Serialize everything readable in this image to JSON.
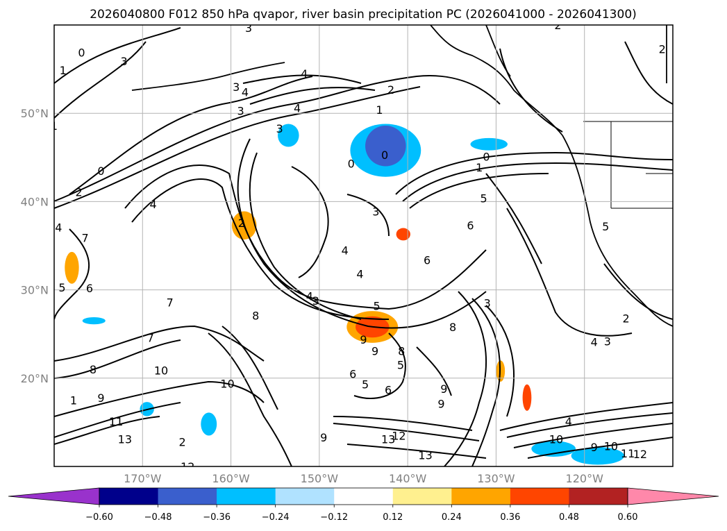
{
  "title": "2026040800 F012 850 hPa qvapor, river basin precipitation PC (2026041000 - 2026041300)",
  "map": {
    "lon_range": [
      -180,
      -110
    ],
    "lat_range": [
      10,
      60
    ],
    "lat_labels": [
      "50°N",
      "40°N",
      "30°N",
      "20°N"
    ],
    "lon_labels": [
      "170°W",
      "160°W",
      "150°W",
      "140°W",
      "130°W",
      "120°W"
    ],
    "contour_labels": [
      {
        "text": "2",
        "lon": -123,
        "lat": 60
      },
      {
        "text": "3",
        "lon": -158,
        "lat": 59.7
      },
      {
        "text": "0",
        "lon": -176.9,
        "lat": 56.9
      },
      {
        "text": "3",
        "lon": -172.1,
        "lat": 55.9
      },
      {
        "text": "2",
        "lon": -111.2,
        "lat": 57.3
      },
      {
        "text": "4",
        "lon": -151.7,
        "lat": 54.5
      },
      {
        "text": "1",
        "lon": -179,
        "lat": 54.9
      },
      {
        "text": "3",
        "lon": -159.4,
        "lat": 53
      },
      {
        "text": "4",
        "lon": -158.4,
        "lat": 52.4
      },
      {
        "text": "2",
        "lon": -141.9,
        "lat": 52.7
      },
      {
        "text": "3",
        "lon": -158.9,
        "lat": 50.3
      },
      {
        "text": "4",
        "lon": -152.5,
        "lat": 50.6
      },
      {
        "text": "1",
        "lon": -143.2,
        "lat": 50.4
      },
      {
        "text": "1",
        "lon": -180,
        "lat": 48.6
      },
      {
        "text": "3",
        "lon": -154.5,
        "lat": 48.3
      },
      {
        "text": "0",
        "lon": -142.6,
        "lat": 45.3
      },
      {
        "text": "0",
        "lon": -131.1,
        "lat": 45.1
      },
      {
        "text": "0",
        "lon": -146.4,
        "lat": 44.3
      },
      {
        "text": "0",
        "lon": -174.7,
        "lat": 43.5
      },
      {
        "text": "1",
        "lon": -131.9,
        "lat": 43.9
      },
      {
        "text": "2",
        "lon": -177.2,
        "lat": 41.1
      },
      {
        "text": "4",
        "lon": -168.8,
        "lat": 39.7
      },
      {
        "text": "3",
        "lon": -143.6,
        "lat": 38.9
      },
      {
        "text": "5",
        "lon": -131.4,
        "lat": 40.4
      },
      {
        "text": "2",
        "lon": -158.8,
        "lat": 37.6
      },
      {
        "text": "4",
        "lon": -179.5,
        "lat": 37.1
      },
      {
        "text": "6",
        "lon": -132.9,
        "lat": 37.3
      },
      {
        "text": "5",
        "lon": -117.6,
        "lat": 37.2
      },
      {
        "text": "7",
        "lon": -176.5,
        "lat": 35.9
      },
      {
        "text": "4",
        "lon": -147.1,
        "lat": 34.5
      },
      {
        "text": "6",
        "lon": -137.8,
        "lat": 33.4
      },
      {
        "text": "4",
        "lon": -145.4,
        "lat": 31.8
      },
      {
        "text": "5",
        "lon": -179.1,
        "lat": 30.3
      },
      {
        "text": "6",
        "lon": -176,
        "lat": 30.2
      },
      {
        "text": "7",
        "lon": -166.9,
        "lat": 28.6
      },
      {
        "text": "3",
        "lon": -150.4,
        "lat": 28.8
      },
      {
        "text": "4",
        "lon": -151.1,
        "lat": 29.3
      },
      {
        "text": "5",
        "lon": -143.5,
        "lat": 28.2
      },
      {
        "text": "3",
        "lon": -131,
        "lat": 28.5
      },
      {
        "text": "8",
        "lon": -157.2,
        "lat": 27.1
      },
      {
        "text": "8",
        "lon": -134.9,
        "lat": 25.8
      },
      {
        "text": "2",
        "lon": -115.3,
        "lat": 26.8
      },
      {
        "text": "7",
        "lon": -169.1,
        "lat": 24.6
      },
      {
        "text": "9",
        "lon": -145,
        "lat": 24.4
      },
      {
        "text": "4",
        "lon": -118.9,
        "lat": 24.1
      },
      {
        "text": "3",
        "lon": -117.4,
        "lat": 24.2
      },
      {
        "text": "8",
        "lon": -140.7,
        "lat": 23.1
      },
      {
        "text": "9",
        "lon": -143.7,
        "lat": 23.1
      },
      {
        "text": "5",
        "lon": -140.8,
        "lat": 21.5
      },
      {
        "text": "8",
        "lon": -175.6,
        "lat": 21
      },
      {
        "text": "10",
        "lon": -167.9,
        "lat": 20.9
      },
      {
        "text": "6",
        "lon": -146.2,
        "lat": 20.5
      },
      {
        "text": "10",
        "lon": -160.4,
        "lat": 19.4
      },
      {
        "text": "5",
        "lon": -144.8,
        "lat": 19.3
      },
      {
        "text": "6",
        "lon": -142.2,
        "lat": 18.7
      },
      {
        "text": "9",
        "lon": -135.9,
        "lat": 18.8
      },
      {
        "text": "1",
        "lon": -177.8,
        "lat": 17.5
      },
      {
        "text": "9",
        "lon": -174.7,
        "lat": 17.8
      },
      {
        "text": "9",
        "lon": -136.2,
        "lat": 17.1
      },
      {
        "text": "11",
        "lon": -173,
        "lat": 15.1
      },
      {
        "text": "4",
        "lon": -121.8,
        "lat": 15.1
      },
      {
        "text": "9",
        "lon": -149.5,
        "lat": 13.3
      },
      {
        "text": "12",
        "lon": -141,
        "lat": 13.5
      },
      {
        "text": "10",
        "lon": -123.2,
        "lat": 13.1
      },
      {
        "text": "13",
        "lon": -172,
        "lat": 13.1
      },
      {
        "text": "2",
        "lon": -165.5,
        "lat": 12.8
      },
      {
        "text": "13",
        "lon": -142.2,
        "lat": 13.1
      },
      {
        "text": "9",
        "lon": -118.9,
        "lat": 12.2
      },
      {
        "text": "10",
        "lon": -117,
        "lat": 12.3
      },
      {
        "text": "13",
        "lon": -138,
        "lat": 11.3
      },
      {
        "text": "12",
        "lon": -113.7,
        "lat": 11.4
      },
      {
        "text": "11",
        "lon": -115.1,
        "lat": 11.5
      },
      {
        "text": "12",
        "lon": -164.9,
        "lat": 10
      }
    ],
    "shading": [
      {
        "lon": -144,
        "lat": 25.8,
        "rx": 1.9,
        "ry": 1.2,
        "color": "#ff4500"
      },
      {
        "lon": -144,
        "lat": 25.8,
        "rx": 2.9,
        "ry": 1.8,
        "color": "#ffa500"
      },
      {
        "lon": -178,
        "lat": 32.5,
        "rx": 0.8,
        "ry": 1.8,
        "color": "#ffa500"
      },
      {
        "lon": -158.5,
        "lat": 37.3,
        "rx": 1.4,
        "ry": 1.6,
        "color": "#ffa500"
      },
      {
        "lon": -126.5,
        "lat": 17.8,
        "rx": 0.5,
        "ry": 1.5,
        "color": "#ff4500"
      },
      {
        "lon": -129.5,
        "lat": 20.8,
        "rx": 0.5,
        "ry": 1.2,
        "color": "#ffa500"
      },
      {
        "lon": -140.5,
        "lat": 36.3,
        "rx": 0.8,
        "ry": 0.7,
        "color": "#ff4500"
      },
      {
        "lon": -142.5,
        "lat": 46.3,
        "rx": 2.3,
        "ry": 2.3,
        "color": "#3a5fcd"
      },
      {
        "lon": -142.5,
        "lat": 45.8,
        "rx": 4,
        "ry": 3,
        "color": "#00bfff"
      },
      {
        "lon": -153.5,
        "lat": 47.5,
        "rx": 1.2,
        "ry": 1.3,
        "color": "#00bfff"
      },
      {
        "lon": -130.8,
        "lat": 46.5,
        "rx": 2.1,
        "ry": 0.7,
        "color": "#00bfff"
      },
      {
        "lon": -123.5,
        "lat": 12,
        "rx": 2.5,
        "ry": 0.9,
        "color": "#00bfff"
      },
      {
        "lon": -118.5,
        "lat": 11.2,
        "rx": 3,
        "ry": 1,
        "color": "#00bfff"
      },
      {
        "lon": -118.5,
        "lat": 11.2,
        "rx": 1.6,
        "ry": 0.6,
        "color": "#3a5fcd"
      },
      {
        "lon": -162.5,
        "lat": 14.8,
        "rx": 0.9,
        "ry": 1.3,
        "color": "#00bfff"
      },
      {
        "lon": -169.5,
        "lat": 16.5,
        "rx": 0.8,
        "ry": 0.8,
        "color": "#00bfff"
      },
      {
        "lon": -175.5,
        "lat": 26.5,
        "rx": 1.3,
        "ry": 0.4,
        "color": "#00bfff"
      }
    ]
  },
  "colorbar": {
    "colors": [
      "#9932cc",
      "#00008b",
      "#3a5fcd",
      "#00bfff",
      "#b0e2ff",
      "#ffffff",
      "#fff08f",
      "#ffa500",
      "#ff4500",
      "#b22222",
      "#ff88aa"
    ],
    "labels": [
      "−0.60",
      "−0.48",
      "−0.36",
      "−0.24",
      "−0.12",
      "0.12",
      "0.24",
      "0.36",
      "0.48",
      "0.60"
    ]
  }
}
